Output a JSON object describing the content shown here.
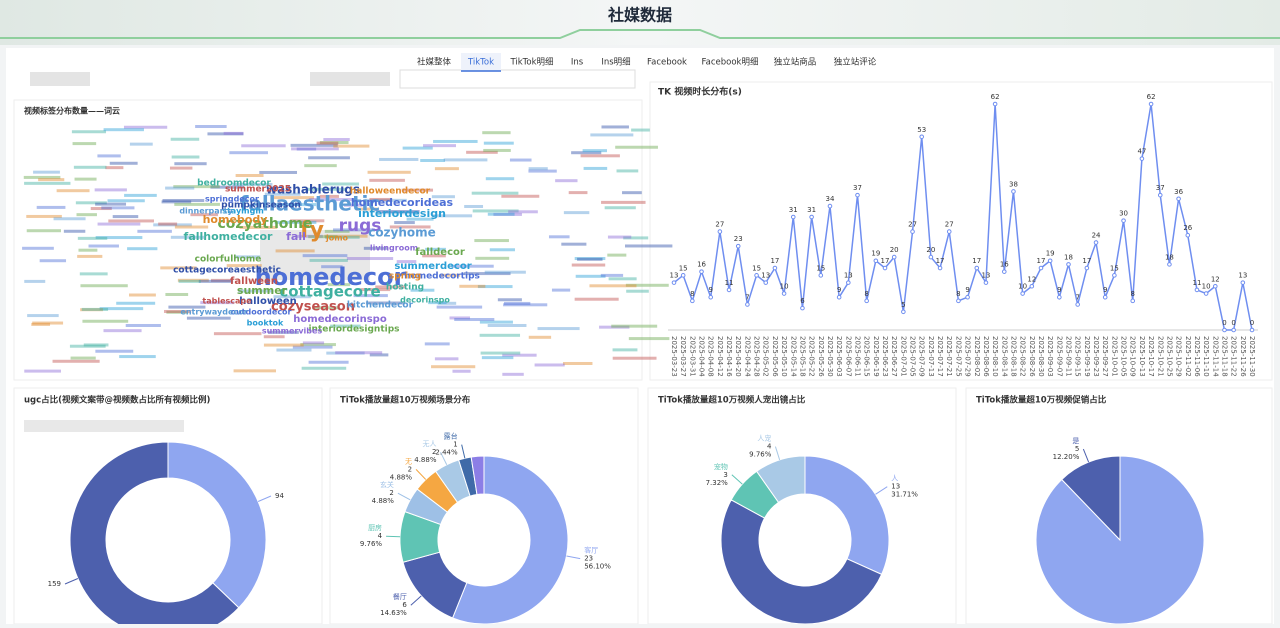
{
  "header": {
    "title": "社媒数据"
  },
  "tabs": [
    "社媒整体",
    "TikTok",
    "TikTok明细",
    "Ins",
    "Ins明细",
    "Facebook",
    "Facebook明细",
    "独立站商品",
    "独立站评论"
  ],
  "active_tab": 1,
  "wordcloud": {
    "title": "视频标签分布数量——词云",
    "words": [
      "homedecor",
      "fallaesthetic",
      "cottagecore",
      "fy",
      "rugs",
      "cozyathome",
      "washablerugs",
      "cozyseason",
      "interiordesign",
      "homedecorideas",
      "cozyhome",
      "fallhomedecor",
      "homebody",
      "fall",
      "summer",
      "halloween",
      "fallween",
      "summerdecor",
      "homedecortips",
      "kitchendecor",
      "hosting",
      "spring",
      "homedecorinspo",
      "interiordesigntips",
      "pumpkinseason",
      "summer2025",
      "stayingin",
      "springdecor",
      "dinnerparty",
      "bedroomdecor",
      "halloweendecor",
      "livingroom",
      "colorfulhome",
      "cottagecoreaesthetic",
      "tablescape",
      "booktok",
      "outdoordecor",
      "entrywaydecor",
      "decorinspo",
      "jomo",
      "summervibes",
      "falldecor"
    ]
  },
  "line_chart": {
    "type": "line",
    "title": "TK 视频时长分布(s)",
    "color": "#6f8ef0",
    "x": [
      "2025-03-23",
      "2025-03-27",
      "2025-03-31",
      "2025-04-04",
      "2025-04-08",
      "2025-04-12",
      "2025-04-16",
      "2025-04-20",
      "2025-04-24",
      "2025-04-28",
      "2025-05-02",
      "2025-05-06",
      "2025-05-10",
      "2025-05-14",
      "2025-05-18",
      "2025-05-22",
      "2025-05-26",
      "2025-05-30",
      "2025-06-03",
      "2025-06-07",
      "2025-06-11",
      "2025-06-15",
      "2025-06-19",
      "2025-06-23",
      "2025-06-27",
      "2025-07-01",
      "2025-07-05",
      "2025-07-09",
      "2025-07-13",
      "2025-07-17",
      "2025-07-21",
      "2025-07-25",
      "2025-07-29",
      "2025-08-02",
      "2025-08-06",
      "2025-08-10",
      "2025-08-14",
      "2025-08-18",
      "2025-08-22",
      "2025-08-26",
      "2025-08-30",
      "2025-09-03",
      "2025-09-07",
      "2025-09-11",
      "2025-09-15",
      "2025-09-19",
      "2025-09-23",
      "2025-09-27",
      "2025-10-01",
      "2025-10-05",
      "2025-10-09",
      "2025-10-13",
      "2025-10-17",
      "2025-10-21",
      "2025-10-25",
      "2025-10-29",
      "2025-11-02",
      "2025-11-06",
      "2025-11-10",
      "2025-11-14",
      "2025-11-18",
      "2025-11-22",
      "2025-11-26",
      "2025-11-30"
    ],
    "values": [
      13,
      15,
      8,
      16,
      9,
      27,
      11,
      23,
      7,
      15,
      13,
      17,
      10,
      31,
      6,
      31,
      15,
      34,
      9,
      13,
      37,
      8,
      19,
      17,
      20,
      5,
      27,
      53,
      20,
      17,
      27,
      8,
      9,
      17,
      13,
      62,
      16,
      38,
      10,
      12,
      17,
      19,
      9,
      18,
      7,
      17,
      24,
      9,
      15,
      30,
      8,
      47,
      62,
      37,
      18,
      36,
      26,
      11,
      10,
      12,
      0,
      0,
      13,
      0
    ],
    "ylim": [
      0,
      62
    ]
  },
  "donuts": [
    {
      "type": "donut",
      "title": "ugc占比(视频文案带@视频数占比所有视频比例)",
      "categories": [
        null,
        null
      ],
      "values": [
        94,
        159
      ],
      "colors": [
        "#8fa6f0",
        "#4d60ad"
      ]
    },
    {
      "type": "donut",
      "title": "TiTok播放量超10万视频场景分布",
      "categories": [
        "客厅",
        "餐厅",
        "厨房",
        "玄关",
        "无",
        "无人",
        "露台",
        null
      ],
      "values": [
        23,
        6,
        4,
        2,
        2,
        2,
        1,
        1
      ],
      "percent_labels": [
        "56.10%",
        "14.63%",
        "9.76%",
        "4.88%",
        "4.88%",
        "4.88%",
        "2.44%",
        null
      ],
      "colors": [
        "#8fa6f0",
        "#4d60ad",
        "#5fc4b4",
        "#9ec0e6",
        "#f5a742",
        "#a9c9e6",
        "#3f6aa8",
        "#8c7ee6"
      ]
    },
    {
      "type": "donut",
      "title": "TiTok播放量超10万视频人宠出镜占比",
      "categories": [
        "人",
        null,
        "宠物",
        "人宠"
      ],
      "values": [
        13,
        21,
        3,
        4
      ],
      "percent_labels": [
        "31.71%",
        null,
        "7.32%",
        "9.76%"
      ],
      "colors": [
        "#8fa6f0",
        "#4d60ad",
        "#5fc4b4",
        "#a9c9e6"
      ]
    },
    {
      "type": "pie",
      "title": "TiTok播放量超10万视频促销占比",
      "categories": [
        null,
        "是"
      ],
      "values": [
        36,
        5
      ],
      "percent_labels": [
        null,
        "12.20%"
      ],
      "colors": [
        "#8fa6f0",
        "#4d60ad"
      ]
    }
  ]
}
